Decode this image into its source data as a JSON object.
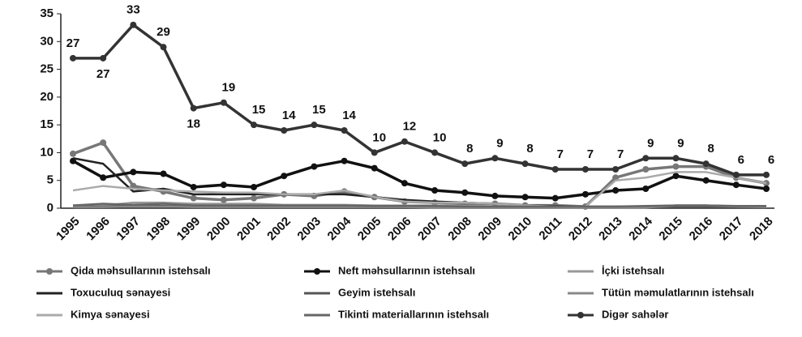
{
  "chart_data": {
    "type": "line",
    "x": [
      1995,
      1996,
      1997,
      1998,
      1999,
      2000,
      2001,
      2002,
      2003,
      2004,
      2005,
      2006,
      2007,
      2008,
      2009,
      2010,
      2011,
      2012,
      2013,
      2014,
      2015,
      2016,
      2017,
      2018
    ],
    "ylim": [
      0,
      35
    ],
    "yticks": [
      0,
      5,
      10,
      15,
      20,
      25,
      30,
      35
    ],
    "series": [
      {
        "name": "Qida məhsullarının istehsalı",
        "color": "#777777",
        "marker": true,
        "values": [
          9.8,
          11.8,
          4,
          3,
          1.8,
          1.5,
          1.8,
          2.5,
          2.2,
          3,
          2,
          1.2,
          1,
          0.8,
          0.8,
          0.5,
          0.5,
          0.3,
          5.5,
          7,
          7.5,
          7.5,
          5.5,
          4.5
        ]
      },
      {
        "name": "Neft məhsullarının istehsalı",
        "color": "#111111",
        "marker": true,
        "values": [
          8.5,
          5.5,
          6.5,
          6.2,
          3.8,
          4.2,
          3.8,
          5.8,
          7.5,
          8.5,
          7.2,
          4.5,
          3.2,
          2.8,
          2.2,
          2,
          1.8,
          2.5,
          3.2,
          3.5,
          5.8,
          5,
          4.2,
          3.5
        ]
      },
      {
        "name": "İçki istehsalı",
        "color": "#999999",
        "marker": false,
        "values": [
          0.5,
          0.5,
          1,
          1,
          0.8,
          0.8,
          0.8,
          0.6,
          0.6,
          0.6,
          0.5,
          0.5,
          0.5,
          0.4,
          0.3,
          0.3,
          0.3,
          0.2,
          0.2,
          0.3,
          0.3,
          0.3,
          0.3,
          0.3
        ]
      },
      {
        "name": "Toxuculuq sənayesi",
        "color": "#222222",
        "marker": false,
        "values": [
          9,
          8,
          3,
          3.5,
          2.5,
          2.5,
          2.5,
          2.5,
          2.5,
          2.5,
          2,
          1.5,
          1.2,
          1,
          0.8,
          0.5,
          0.4,
          0.3,
          0.3,
          0.3,
          0.5,
          0.5,
          0.3,
          0.3
        ]
      },
      {
        "name": "Geyim istehsalı",
        "color": "#555555",
        "marker": false,
        "values": [
          0.3,
          0.3,
          0.4,
          0.4,
          0.3,
          0.3,
          0.3,
          0.3,
          0.3,
          0.3,
          0.3,
          0.2,
          0.2,
          0.2,
          0.2,
          0.2,
          0.2,
          0.2,
          0.2,
          0.2,
          0.2,
          0.2,
          0.2,
          0.2
        ]
      },
      {
        "name": "Tütün məmulatlarının istehsalı",
        "color": "#888888",
        "marker": false,
        "values": [
          0.2,
          0.2,
          0.3,
          0.3,
          0.2,
          0.2,
          0.2,
          0.2,
          0.2,
          0.2,
          0.2,
          0.2,
          0.1,
          0.1,
          0.1,
          0.1,
          0.1,
          0.1,
          0.1,
          0.1,
          0.5,
          0.5,
          0.3,
          0.2
        ]
      },
      {
        "name": "Kimya sənayesi",
        "color": "#aaaaaa",
        "marker": false,
        "values": [
          3.2,
          4,
          3.5,
          3.2,
          3,
          2.8,
          2.8,
          2.5,
          2.5,
          3.2,
          2,
          1.2,
          1,
          1,
          0.8,
          0.5,
          0.3,
          0.3,
          5,
          5.5,
          6.5,
          6.5,
          5.5,
          4.5
        ]
      },
      {
        "name": "Tikinti materiallarının istehsalı",
        "color": "#666666",
        "marker": false,
        "values": [
          0.5,
          0.8,
          0.6,
          0.8,
          0.5,
          0.5,
          0.5,
          0.5,
          0.5,
          0.5,
          0.4,
          0.4,
          0.4,
          0.3,
          0.3,
          0.3,
          0.3,
          0.3,
          0.3,
          0.4,
          0.5,
          0.5,
          0.4,
          0.4
        ]
      },
      {
        "name": "Digər sahələr",
        "color": "#333333",
        "marker": true,
        "data_labels": true,
        "values": [
          27,
          27,
          33,
          29,
          18,
          19,
          15,
          14,
          15,
          14,
          10,
          12,
          10,
          8,
          9,
          8,
          7,
          7,
          7,
          9,
          9,
          8,
          6,
          6
        ]
      }
    ]
  }
}
